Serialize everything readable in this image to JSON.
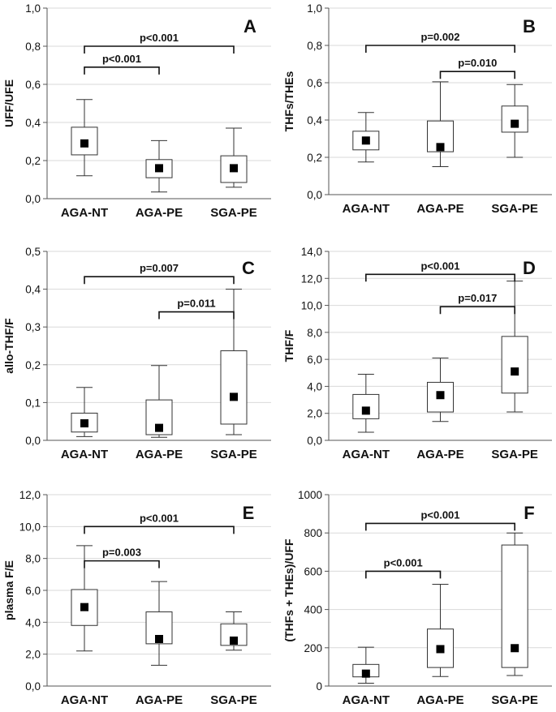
{
  "chart_data": [
    {
      "type": "box",
      "panel": "A",
      "ylabel": "UFF/UFE",
      "ylim": [
        0,
        1.0
      ],
      "yticks": [
        "0,0",
        "0,2",
        "0,4",
        "0,6",
        "0,8",
        "1,0"
      ],
      "categories": [
        "AGA-NT",
        "AGA-PE",
        "SGA-PE"
      ],
      "boxes": [
        {
          "min": 0.12,
          "q1": 0.23,
          "q3": 0.375,
          "max": 0.52,
          "mean": 0.29
        },
        {
          "min": 0.035,
          "q1": 0.11,
          "q3": 0.205,
          "max": 0.305,
          "mean": 0.16
        },
        {
          "min": 0.06,
          "q1": 0.085,
          "q3": 0.225,
          "max": 0.37,
          "mean": 0.16
        }
      ],
      "comparisons": [
        {
          "from": 0,
          "to": 1,
          "y": 0.69,
          "label": "p<0.001"
        },
        {
          "from": 0,
          "to": 2,
          "y": 0.8,
          "label": "p<0.001"
        }
      ]
    },
    {
      "type": "box",
      "panel": "B",
      "ylabel": "THFs/THEs",
      "ylim": [
        0,
        1.0
      ],
      "yticks": [
        "0,0",
        "0,2",
        "0,4",
        "0,6",
        "0,8",
        "1,0"
      ],
      "categories": [
        "AGA-NT",
        "AGA-PE",
        "SGA-PE"
      ],
      "boxes": [
        {
          "min": 0.175,
          "q1": 0.24,
          "q3": 0.34,
          "max": 0.44,
          "mean": 0.29
        },
        {
          "min": 0.15,
          "q1": 0.23,
          "q3": 0.395,
          "max": 0.605,
          "mean": 0.255
        },
        {
          "min": 0.2,
          "q1": 0.335,
          "q3": 0.475,
          "max": 0.59,
          "mean": 0.38
        }
      ],
      "comparisons": [
        {
          "from": 1,
          "to": 2,
          "y": 0.66,
          "label": "p=0.010"
        },
        {
          "from": 0,
          "to": 2,
          "y": 0.8,
          "label": "p=0.002"
        }
      ]
    },
    {
      "type": "box",
      "panel": "C",
      "ylabel": "allo-THF/F",
      "ylim": [
        0,
        0.5
      ],
      "yticks": [
        "0,0",
        "0,1",
        "0,2",
        "0,3",
        "0,4",
        "0,5"
      ],
      "categories": [
        "AGA-NT",
        "AGA-PE",
        "SGA-PE"
      ],
      "boxes": [
        {
          "min": 0.01,
          "q1": 0.022,
          "q3": 0.072,
          "max": 0.14,
          "mean": 0.045
        },
        {
          "min": 0.008,
          "q1": 0.015,
          "q3": 0.107,
          "max": 0.198,
          "mean": 0.033
        },
        {
          "min": 0.015,
          "q1": 0.043,
          "q3": 0.237,
          "max": 0.4,
          "mean": 0.115
        }
      ],
      "comparisons": [
        {
          "from": 1,
          "to": 2,
          "y": 0.34,
          "label": "p=0.011"
        },
        {
          "from": 0,
          "to": 2,
          "y": 0.433,
          "label": "p=0.007"
        }
      ]
    },
    {
      "type": "box",
      "panel": "D",
      "ylabel": "THF/F",
      "ylim": [
        0,
        14.0
      ],
      "yticks": [
        "0,0",
        "2,0",
        "4,0",
        "6,0",
        "8,0",
        "10,0",
        "12,0",
        "14,0"
      ],
      "categories": [
        "AGA-NT",
        "AGA-PE",
        "SGA-PE"
      ],
      "boxes": [
        {
          "min": 0.6,
          "q1": 1.6,
          "q3": 3.4,
          "max": 4.9,
          "mean": 2.2
        },
        {
          "min": 1.4,
          "q1": 2.1,
          "q3": 4.3,
          "max": 6.1,
          "mean": 3.35
        },
        {
          "min": 2.1,
          "q1": 3.5,
          "q3": 7.7,
          "max": 11.8,
          "mean": 5.1
        }
      ],
      "comparisons": [
        {
          "from": 1,
          "to": 2,
          "y": 9.9,
          "label": "p=0.017"
        },
        {
          "from": 0,
          "to": 2,
          "y": 12.3,
          "label": "p<0.001"
        }
      ]
    },
    {
      "type": "box",
      "panel": "E",
      "ylabel": "plasma F/E",
      "ylim": [
        0,
        12.0
      ],
      "yticks": [
        "0,0",
        "2,0",
        "4,0",
        "6,0",
        "8,0",
        "10,0",
        "12,0"
      ],
      "categories": [
        "AGA-NT",
        "AGA-PE",
        "SGA-PE"
      ],
      "boxes": [
        {
          "min": 2.2,
          "q1": 3.8,
          "q3": 6.05,
          "max": 8.8,
          "mean": 4.95
        },
        {
          "min": 1.3,
          "q1": 2.65,
          "q3": 4.65,
          "max": 6.55,
          "mean": 2.95
        },
        {
          "min": 2.25,
          "q1": 2.55,
          "q3": 3.9,
          "max": 4.65,
          "mean": 2.85
        }
      ],
      "comparisons": [
        {
          "from": 0,
          "to": 1,
          "y": 7.85,
          "label": "p=0.003"
        },
        {
          "from": 0,
          "to": 2,
          "y": 10.0,
          "label": "p<0.001"
        }
      ]
    },
    {
      "type": "box",
      "panel": "F",
      "ylabel": "(THFs + THEs)/UFF",
      "ylim": [
        0,
        1000
      ],
      "yticks": [
        "0",
        "200",
        "400",
        "600",
        "800",
        "1000"
      ],
      "categories": [
        "AGA-NT",
        "AGA-PE",
        "SGA-PE"
      ],
      "boxes": [
        {
          "min": 15,
          "q1": 48,
          "q3": 113,
          "max": 203,
          "mean": 65
        },
        {
          "min": 50,
          "q1": 97,
          "q3": 298,
          "max": 532,
          "mean": 193
        },
        {
          "min": 55,
          "q1": 97,
          "q3": 737,
          "max": 800,
          "mean": 198
        }
      ],
      "comparisons": [
        {
          "from": 0,
          "to": 1,
          "y": 600,
          "label": "p<0.001"
        },
        {
          "from": 0,
          "to": 2,
          "y": 850,
          "label": "p<0.001"
        }
      ]
    }
  ]
}
